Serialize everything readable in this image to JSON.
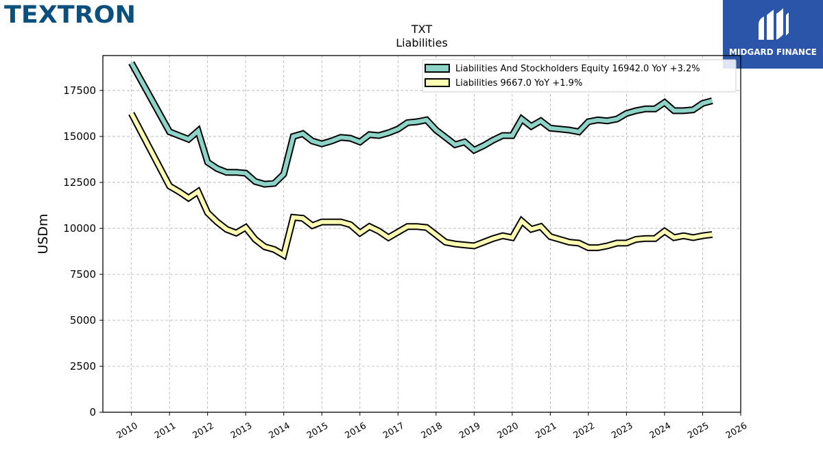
{
  "brand": {
    "logo_text": "TEXTRON"
  },
  "partner": {
    "name": "MIDGARD FINANCE"
  },
  "colors": {
    "series_0": "#8dd3c7",
    "series_1": "#ffffb3",
    "outline": "#000000",
    "grid": "#b0b0b0"
  },
  "chart_data": {
    "type": "line",
    "title": "TXT",
    "subtitle": "Liabilities",
    "xlabel": "",
    "ylabel": "USDm",
    "xlim": [
      2009.25,
      2026.0
    ],
    "ylim": [
      0,
      19400
    ],
    "x_ticks": [
      "2010",
      "2011",
      "2012",
      "2013",
      "2014",
      "2015",
      "2016",
      "2017",
      "2018",
      "2019",
      "2020",
      "2021",
      "2022",
      "2023",
      "2024",
      "2025",
      "2026"
    ],
    "y_ticks": [
      "0",
      "2500",
      "5000",
      "7500",
      "10000",
      "12500",
      "15000",
      "17500"
    ],
    "grid": true,
    "legend_position": "top-right",
    "series": [
      {
        "name": "Liabilities And Stockholders Equity",
        "legend": "Liabilities And Stockholders Equity  16942.0 YoY +3.2%",
        "points": [
          [
            2010.0,
            19000
          ],
          [
            2011.0,
            15250
          ],
          [
            2011.25,
            15050
          ],
          [
            2011.5,
            14850
          ],
          [
            2011.75,
            15300
          ],
          [
            2012.0,
            13600
          ],
          [
            2012.25,
            13250
          ],
          [
            2012.5,
            13050
          ],
          [
            2012.75,
            13050
          ],
          [
            2013.0,
            13000
          ],
          [
            2013.25,
            12550
          ],
          [
            2013.5,
            12400
          ],
          [
            2013.75,
            12450
          ],
          [
            2014.0,
            12950
          ],
          [
            2014.25,
            15000
          ],
          [
            2014.5,
            15150
          ],
          [
            2014.75,
            14750
          ],
          [
            2015.0,
            14600
          ],
          [
            2015.25,
            14750
          ],
          [
            2015.5,
            14950
          ],
          [
            2015.75,
            14900
          ],
          [
            2016.0,
            14700
          ],
          [
            2016.25,
            15100
          ],
          [
            2016.5,
            15050
          ],
          [
            2016.75,
            15200
          ],
          [
            2017.0,
            15400
          ],
          [
            2017.25,
            15750
          ],
          [
            2017.5,
            15800
          ],
          [
            2017.75,
            15900
          ],
          [
            2018.0,
            15350
          ],
          [
            2018.25,
            14950
          ],
          [
            2018.5,
            14550
          ],
          [
            2018.75,
            14700
          ],
          [
            2019.0,
            14250
          ],
          [
            2019.25,
            14500
          ],
          [
            2019.5,
            14800
          ],
          [
            2019.75,
            15050
          ],
          [
            2020.0,
            15050
          ],
          [
            2020.25,
            15950
          ],
          [
            2020.5,
            15550
          ],
          [
            2020.75,
            15850
          ],
          [
            2021.0,
            15450
          ],
          [
            2021.25,
            15400
          ],
          [
            2021.5,
            15350
          ],
          [
            2021.75,
            15250
          ],
          [
            2022.0,
            15800
          ],
          [
            2022.25,
            15900
          ],
          [
            2022.5,
            15850
          ],
          [
            2022.75,
            15950
          ],
          [
            2023.0,
            16250
          ],
          [
            2023.25,
            16400
          ],
          [
            2023.5,
            16500
          ],
          [
            2023.75,
            16500
          ],
          [
            2024.0,
            16850
          ],
          [
            2024.25,
            16400
          ],
          [
            2024.5,
            16400
          ],
          [
            2024.75,
            16450
          ],
          [
            2025.0,
            16800
          ],
          [
            2025.25,
            16942
          ]
        ]
      },
      {
        "name": "Liabilities",
        "legend": "Liabilities  9667.0 YoY +1.9%",
        "points": [
          [
            2010.0,
            16250
          ],
          [
            2011.0,
            12300
          ],
          [
            2011.25,
            12000
          ],
          [
            2011.5,
            11650
          ],
          [
            2011.75,
            12000
          ],
          [
            2012.0,
            10850
          ],
          [
            2012.25,
            10350
          ],
          [
            2012.5,
            9950
          ],
          [
            2012.75,
            9750
          ],
          [
            2013.0,
            10050
          ],
          [
            2013.25,
            9400
          ],
          [
            2013.5,
            9000
          ],
          [
            2013.75,
            8850
          ],
          [
            2014.0,
            8550
          ],
          [
            2014.25,
            10600
          ],
          [
            2014.5,
            10550
          ],
          [
            2014.75,
            10150
          ],
          [
            2015.0,
            10350
          ],
          [
            2015.25,
            10350
          ],
          [
            2015.5,
            10350
          ],
          [
            2015.75,
            10200
          ],
          [
            2016.0,
            9750
          ],
          [
            2016.25,
            10100
          ],
          [
            2016.5,
            9850
          ],
          [
            2016.75,
            9500
          ],
          [
            2017.0,
            9800
          ],
          [
            2017.25,
            10100
          ],
          [
            2017.5,
            10100
          ],
          [
            2017.75,
            10050
          ],
          [
            2018.0,
            9650
          ],
          [
            2018.25,
            9250
          ],
          [
            2018.5,
            9150
          ],
          [
            2018.75,
            9100
          ],
          [
            2019.0,
            9050
          ],
          [
            2019.25,
            9250
          ],
          [
            2019.5,
            9450
          ],
          [
            2019.75,
            9600
          ],
          [
            2020.0,
            9500
          ],
          [
            2020.25,
            10400
          ],
          [
            2020.5,
            9950
          ],
          [
            2020.75,
            10100
          ],
          [
            2021.0,
            9550
          ],
          [
            2021.25,
            9400
          ],
          [
            2021.5,
            9250
          ],
          [
            2021.75,
            9200
          ],
          [
            2022.0,
            8950
          ],
          [
            2022.25,
            8950
          ],
          [
            2022.5,
            9050
          ],
          [
            2022.75,
            9200
          ],
          [
            2023.0,
            9200
          ],
          [
            2023.25,
            9400
          ],
          [
            2023.5,
            9450
          ],
          [
            2023.75,
            9450
          ],
          [
            2024.0,
            9850
          ],
          [
            2024.25,
            9500
          ],
          [
            2024.5,
            9600
          ],
          [
            2024.75,
            9500
          ],
          [
            2025.0,
            9600
          ],
          [
            2025.25,
            9667
          ]
        ]
      }
    ]
  }
}
